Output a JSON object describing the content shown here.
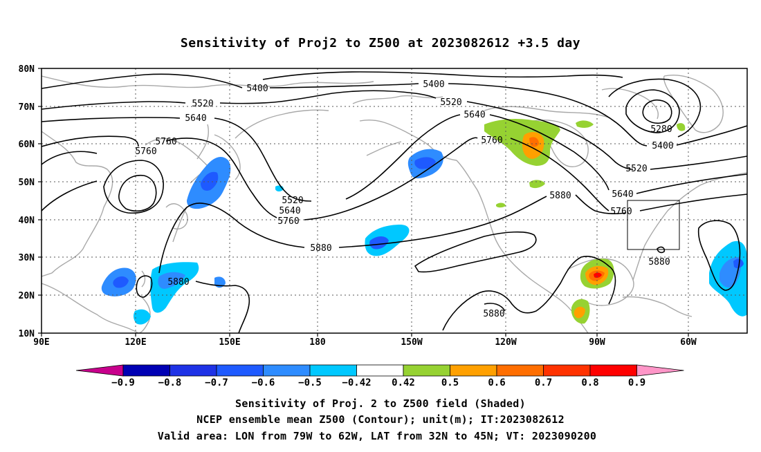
{
  "title": "Sensitivity of Proj2 to Z500 at 2023082612 +3.5 day",
  "map": {
    "lat_ticks": [
      "80N",
      "70N",
      "60N",
      "50N",
      "40N",
      "30N",
      "20N",
      "10N"
    ],
    "lon_ticks": [
      "90E",
      "120E",
      "150E",
      "180",
      "150W",
      "120W",
      "90W",
      "60W"
    ],
    "contour_labels": {
      "c5400_a": "5400",
      "c5400_b": "5400",
      "c5400_c": "5400",
      "c5520_a": "5520",
      "c5520_b": "5520",
      "c5520_c": "5520",
      "c5520_d": "5520",
      "c5640_a": "5640",
      "c5640_b": "5640",
      "c5640_c": "5640",
      "c5640_d": "5640",
      "c5760_a": "5760",
      "c5760_b": "5760",
      "c5760_c": "5760",
      "c5760_d": "5760",
      "c5760_e": "5760",
      "c5880_a": "5880",
      "c5880_b": "5880",
      "c5880_c": "5880",
      "c5880_d": "5880",
      "c5880_e": "5880",
      "c5280": "5280"
    },
    "valid_box": {
      "lon": [
        "79W",
        "62W"
      ],
      "lat": [
        "32N",
        "45N"
      ]
    }
  },
  "colorbar": {
    "labels": [
      "-0.9",
      "-0.8",
      "-0.7",
      "-0.6",
      "-0.5",
      "-0.42",
      "0.42",
      "0.5",
      "0.6",
      "0.7",
      "0.8",
      "0.9"
    ],
    "colors": [
      "#c8008c",
      "#0000b4",
      "#1e32e6",
      "#1e5aff",
      "#2e8cff",
      "#00c8ff",
      "#ffffff",
      "#96d232",
      "#ffa000",
      "#ff6e00",
      "#ff3200",
      "#ff0000",
      "#ff96c8"
    ]
  },
  "caption": {
    "line1": "Sensitivity of Proj. 2 to Z500 field (Shaded)",
    "line2": "NCEP ensemble mean Z500 (Contour); unit(m); IT:2023082612",
    "line3": "Valid area: LON from 79W to 62W, LAT from 32N to 45N; VT: 2023090200"
  }
}
